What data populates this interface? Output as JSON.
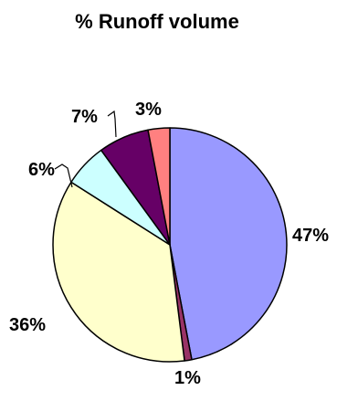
{
  "chart_data": {
    "type": "pie",
    "title": "% Runoff volume",
    "start_angle_deg": 0,
    "direction": "clockwise",
    "legend": "none",
    "slices": [
      {
        "label": "47%",
        "value": 47,
        "color": "#9999ff"
      },
      {
        "label": "1%",
        "value": 1,
        "color": "#993366"
      },
      {
        "label": "36%",
        "value": 36,
        "color": "#ffffcc"
      },
      {
        "label": "6%",
        "value": 6,
        "color": "#ccffff"
      },
      {
        "label": "7%",
        "value": 7,
        "color": "#660066"
      },
      {
        "label": "3%",
        "value": 3,
        "color": "#ff8080"
      }
    ]
  }
}
